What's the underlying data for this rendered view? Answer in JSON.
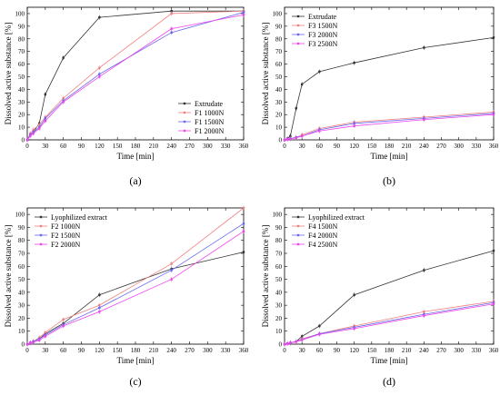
{
  "chart_data": [
    {
      "type": "line",
      "panel_label": "(a)",
      "xlabel": "Time [min]",
      "ylabel": "Dissolved active substance [%]",
      "xlim": [
        0,
        360
      ],
      "ylim": [
        0,
        105
      ],
      "xticks": [
        0,
        30,
        60,
        90,
        120,
        150,
        180,
        210,
        240,
        270,
        300,
        330,
        360
      ],
      "yticks": [
        0,
        10,
        20,
        30,
        40,
        50,
        60,
        70,
        80,
        90,
        100
      ],
      "legend_position": "bottom-right",
      "series": [
        {
          "name": "Extrudate",
          "color": "#333333",
          "x": [
            0,
            5,
            10,
            20,
            30,
            60,
            120,
            240,
            360
          ],
          "y": [
            0,
            4,
            6,
            13,
            36,
            65,
            97,
            102,
            102
          ]
        },
        {
          "name": "F1 1000N",
          "color": "#f08080",
          "x": [
            0,
            5,
            10,
            20,
            30,
            60,
            120,
            240,
            360
          ],
          "y": [
            0,
            5,
            8,
            12,
            18,
            33,
            57,
            100,
            102
          ]
        },
        {
          "name": "F1 1500N",
          "color": "#6666ee",
          "x": [
            0,
            5,
            10,
            20,
            30,
            60,
            120,
            240,
            360
          ],
          "y": [
            0,
            4,
            6,
            10,
            17,
            31,
            52,
            85,
            101
          ]
        },
        {
          "name": "F1 2000N",
          "color": "#ee44ee",
          "x": [
            0,
            5,
            10,
            20,
            30,
            60,
            120,
            240,
            360
          ],
          "y": [
            0,
            3,
            5,
            9,
            15,
            30,
            50,
            88,
            99
          ]
        }
      ]
    },
    {
      "type": "line",
      "panel_label": "(b)",
      "xlabel": "Time [min]",
      "ylabel": "Dissolved active substance [%]",
      "xlim": [
        0,
        360
      ],
      "ylim": [
        0,
        105
      ],
      "xticks": [
        0,
        30,
        60,
        90,
        120,
        150,
        180,
        210,
        240,
        270,
        300,
        330,
        360
      ],
      "yticks": [
        0,
        10,
        20,
        30,
        40,
        50,
        60,
        70,
        80,
        90,
        100
      ],
      "legend_position": "top-left",
      "series": [
        {
          "name": "Extrudate",
          "color": "#333333",
          "x": [
            0,
            5,
            10,
            20,
            30,
            60,
            120,
            240,
            360
          ],
          "y": [
            0,
            1,
            3,
            25,
            44,
            54,
            61,
            73,
            81
          ]
        },
        {
          "name": "F3 1500N",
          "color": "#f08080",
          "x": [
            0,
            5,
            10,
            20,
            30,
            60,
            120,
            240,
            360
          ],
          "y": [
            0,
            0.5,
            1,
            2,
            4,
            9,
            14,
            18,
            22
          ]
        },
        {
          "name": "F3 2000N",
          "color": "#6666ee",
          "x": [
            0,
            5,
            10,
            20,
            30,
            60,
            120,
            240,
            360
          ],
          "y": [
            0,
            0.5,
            1,
            2,
            3,
            8,
            13,
            17,
            21
          ]
        },
        {
          "name": "F3 2500N",
          "color": "#ee44ee",
          "x": [
            0,
            5,
            10,
            20,
            30,
            60,
            120,
            240,
            360
          ],
          "y": [
            0,
            0.3,
            0.8,
            1.5,
            3,
            7,
            11,
            16,
            20
          ]
        }
      ]
    },
    {
      "type": "line",
      "panel_label": "(c)",
      "xlabel": "Time [min]",
      "ylabel": "Dissolved active substance [%]",
      "xlim": [
        0,
        360
      ],
      "ylim": [
        0,
        105
      ],
      "xticks": [
        0,
        30,
        60,
        90,
        120,
        150,
        180,
        210,
        240,
        270,
        300,
        330,
        360
      ],
      "yticks": [
        0,
        10,
        20,
        30,
        40,
        50,
        60,
        70,
        80,
        90,
        100
      ],
      "legend_position": "top-left",
      "series": [
        {
          "name": "Lyophilized extract",
          "color": "#333333",
          "x": [
            0,
            5,
            10,
            20,
            30,
            60,
            120,
            240,
            360
          ],
          "y": [
            0,
            1,
            2,
            4,
            8,
            16,
            38,
            58,
            71
          ]
        },
        {
          "name": "F2 1000N",
          "color": "#f08080",
          "x": [
            0,
            5,
            10,
            20,
            30,
            60,
            120,
            240,
            360
          ],
          "y": [
            0,
            1,
            2,
            5,
            9,
            19,
            30,
            62,
            105
          ]
        },
        {
          "name": "F2 1500N",
          "color": "#6666ee",
          "x": [
            0,
            5,
            10,
            20,
            30,
            60,
            120,
            240,
            360
          ],
          "y": [
            0,
            1,
            2,
            4,
            7,
            15,
            28,
            57,
            93
          ]
        },
        {
          "name": "F2 2000N",
          "color": "#ee44ee",
          "x": [
            0,
            5,
            10,
            20,
            30,
            60,
            120,
            240,
            360
          ],
          "y": [
            0,
            0.8,
            1.5,
            3,
            6,
            14,
            25,
            50,
            87
          ]
        }
      ]
    },
    {
      "type": "line",
      "panel_label": "(d)",
      "xlabel": "Time [min]",
      "ylabel": "Dissolved active substance [%]",
      "xlim": [
        0,
        360
      ],
      "ylim": [
        0,
        105
      ],
      "xticks": [
        0,
        30,
        60,
        90,
        120,
        150,
        180,
        210,
        240,
        270,
        300,
        330,
        360
      ],
      "yticks": [
        0,
        10,
        20,
        30,
        40,
        50,
        60,
        70,
        80,
        90,
        100
      ],
      "legend_position": "top-left",
      "series": [
        {
          "name": "Lyophilized extract",
          "color": "#333333",
          "x": [
            0,
            5,
            10,
            20,
            30,
            60,
            120,
            240,
            360
          ],
          "y": [
            0,
            0.5,
            1,
            2,
            6,
            14,
            38,
            57,
            72
          ]
        },
        {
          "name": "F4 1500N",
          "color": "#f08080",
          "x": [
            0,
            5,
            10,
            20,
            30,
            60,
            120,
            240,
            360
          ],
          "y": [
            0,
            0.5,
            1,
            2,
            4,
            8,
            14,
            25,
            33
          ]
        },
        {
          "name": "F4 2000N",
          "color": "#6666ee",
          "x": [
            0,
            5,
            10,
            20,
            30,
            60,
            120,
            240,
            360
          ],
          "y": [
            0,
            0.5,
            1,
            2,
            3.5,
            8,
            13,
            23,
            32
          ]
        },
        {
          "name": "F4 2500N",
          "color": "#ee44ee",
          "x": [
            0,
            5,
            10,
            20,
            30,
            60,
            120,
            240,
            360
          ],
          "y": [
            0,
            0.4,
            0.9,
            1.8,
            3.2,
            7.5,
            12,
            22,
            31
          ]
        }
      ]
    }
  ]
}
